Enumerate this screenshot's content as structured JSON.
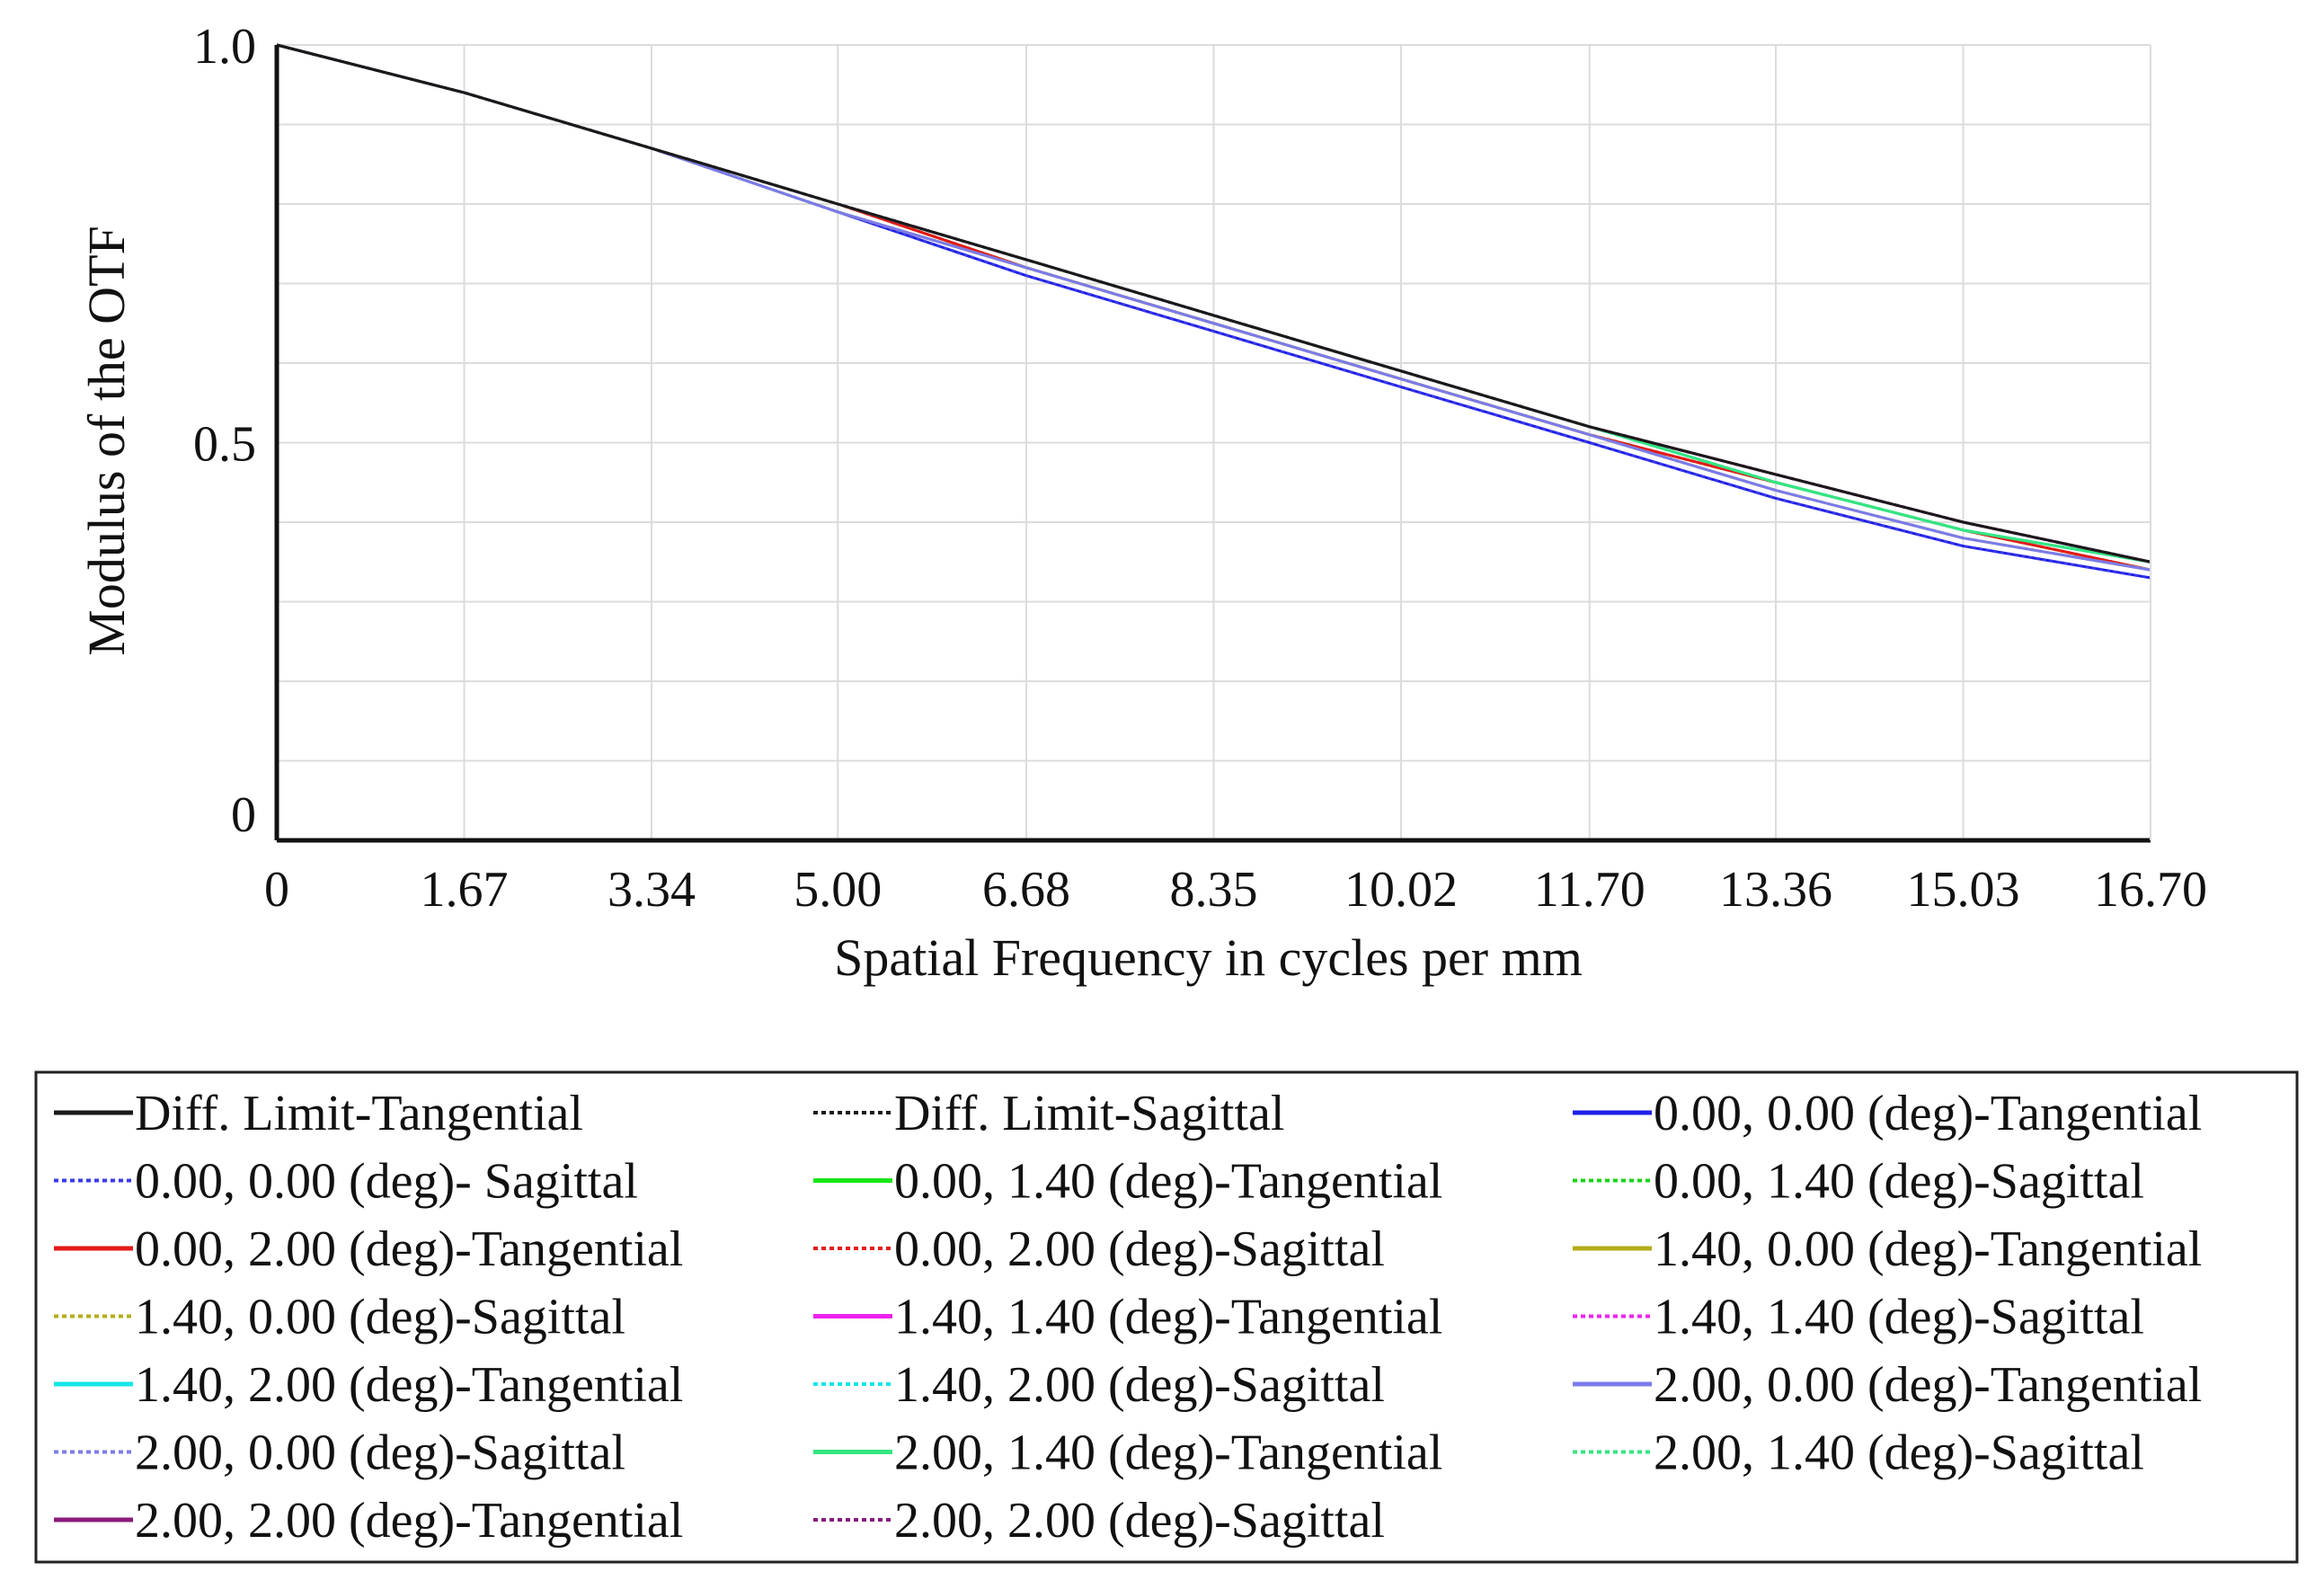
{
  "chart_data": {
    "type": "line",
    "title": "",
    "xlabel": "Spatial Frequency in cycles per mm",
    "ylabel": "Modulus of the OTF",
    "xlim": [
      0,
      16.7
    ],
    "ylim": [
      0,
      1.0
    ],
    "grid": true,
    "legend_placement": "bottom",
    "x_ticks": [
      "0",
      "1.67",
      "3.34",
      "5.00",
      "6.68",
      "8.35",
      "10.02",
      "11.70",
      "13.36",
      "15.03",
      "16.70"
    ],
    "y_ticks": [
      "0",
      "0.5",
      "1.0"
    ],
    "y_gridlines": [
      0.1,
      0.2,
      0.3,
      0.4,
      0.5,
      0.6,
      0.7,
      0.8,
      0.9,
      1.0
    ],
    "x": [
      0,
      1.67,
      3.34,
      5.0,
      6.68,
      8.35,
      10.02,
      11.7,
      13.36,
      15.03,
      16.7
    ],
    "series": [
      {
        "name": "Diff. Limit-Tangential",
        "color": "#1a1a1a",
        "style": "solid",
        "values": [
          1.0,
          0.94,
          0.87,
          0.8,
          0.73,
          0.66,
          0.59,
          0.52,
          0.46,
          0.4,
          0.35
        ]
      },
      {
        "name": "Diff. Limit-Sagittal",
        "color": "#1a1a1a",
        "style": "dotted",
        "values": [
          1.0,
          0.94,
          0.87,
          0.8,
          0.73,
          0.66,
          0.59,
          0.52,
          0.46,
          0.4,
          0.35
        ]
      },
      {
        "name": "0.00, 0.00 (deg)-Tangential",
        "color": "#1f1fe6",
        "style": "solid",
        "values": [
          1.0,
          0.94,
          0.87,
          0.79,
          0.71,
          0.64,
          0.57,
          0.5,
          0.43,
          0.37,
          0.33
        ]
      },
      {
        "name": "0.00, 0.00 (deg)- Sagittal",
        "color": "#3a3ae8",
        "style": "dotted",
        "values": [
          1.0,
          0.94,
          0.87,
          0.79,
          0.71,
          0.64,
          0.57,
          0.5,
          0.43,
          0.37,
          0.33
        ]
      },
      {
        "name": "0.00, 1.40 (deg)-Tangential",
        "color": "#19e619",
        "style": "solid",
        "values": [
          1.0,
          0.94,
          0.87,
          0.8,
          0.72,
          0.65,
          0.58,
          0.51,
          0.45,
          0.39,
          0.34
        ]
      },
      {
        "name": "0.00, 1.40 (deg)-Sagittal",
        "color": "#19d419",
        "style": "dotted",
        "values": [
          1.0,
          0.94,
          0.87,
          0.8,
          0.72,
          0.65,
          0.58,
          0.51,
          0.45,
          0.39,
          0.34
        ]
      },
      {
        "name": "0.00, 2.00 (deg)-Tangential",
        "color": "#e61919",
        "style": "solid",
        "values": [
          1.0,
          0.94,
          0.87,
          0.8,
          0.72,
          0.65,
          0.58,
          0.51,
          0.45,
          0.39,
          0.34
        ]
      },
      {
        "name": "0.00, 2.00 (deg)-Sagittal",
        "color": "#e61919",
        "style": "dotted",
        "values": [
          1.0,
          0.94,
          0.87,
          0.8,
          0.72,
          0.65,
          0.58,
          0.51,
          0.45,
          0.39,
          0.34
        ]
      },
      {
        "name": "1.40, 0.00 (deg)-Tangential",
        "color": "#b3ad1a",
        "style": "solid",
        "values": [
          1.0,
          0.94,
          0.87,
          0.79,
          0.72,
          0.65,
          0.58,
          0.51,
          0.44,
          0.38,
          0.34
        ]
      },
      {
        "name": "1.40, 0.00 (deg)-Sagittal",
        "color": "#b3ad1a",
        "style": "dotted",
        "values": [
          1.0,
          0.94,
          0.87,
          0.79,
          0.72,
          0.65,
          0.58,
          0.51,
          0.44,
          0.38,
          0.34
        ]
      },
      {
        "name": "1.40, 1.40 (deg)-Tangential",
        "color": "#ee22ee",
        "style": "solid",
        "values": [
          1.0,
          0.94,
          0.87,
          0.8,
          0.73,
          0.66,
          0.59,
          0.52,
          0.46,
          0.4,
          0.35
        ]
      },
      {
        "name": "1.40, 1.40 (deg)-Sagittal",
        "color": "#ee22ee",
        "style": "dotted",
        "values": [
          1.0,
          0.94,
          0.87,
          0.8,
          0.73,
          0.66,
          0.59,
          0.52,
          0.46,
          0.4,
          0.35
        ]
      },
      {
        "name": "1.40, 2.00 (deg)-Tangential",
        "color": "#11e6e6",
        "style": "solid",
        "values": [
          1.0,
          0.94,
          0.87,
          0.8,
          0.73,
          0.66,
          0.59,
          0.52,
          0.45,
          0.39,
          0.35
        ]
      },
      {
        "name": "1.40, 2.00 (deg)-Sagittal",
        "color": "#11e6e6",
        "style": "dotted",
        "values": [
          1.0,
          0.94,
          0.87,
          0.8,
          0.73,
          0.66,
          0.59,
          0.52,
          0.45,
          0.39,
          0.35
        ]
      },
      {
        "name": "2.00, 0.00 (deg)-Tangential",
        "color": "#7b7bea",
        "style": "solid",
        "values": [
          1.0,
          0.94,
          0.87,
          0.79,
          0.72,
          0.65,
          0.58,
          0.51,
          0.44,
          0.38,
          0.34
        ]
      },
      {
        "name": "2.00, 0.00 (deg)-Sagittal",
        "color": "#7b7bea",
        "style": "dotted",
        "values": [
          1.0,
          0.94,
          0.87,
          0.79,
          0.72,
          0.65,
          0.58,
          0.51,
          0.44,
          0.38,
          0.34
        ]
      },
      {
        "name": "2.00, 1.40 (deg)-Tangential",
        "color": "#33e680",
        "style": "solid",
        "values": [
          1.0,
          0.94,
          0.87,
          0.8,
          0.73,
          0.66,
          0.59,
          0.52,
          0.45,
          0.39,
          0.35
        ]
      },
      {
        "name": "2.00, 1.40 (deg)-Sagittal",
        "color": "#33e680",
        "style": "dotted",
        "values": [
          1.0,
          0.94,
          0.87,
          0.8,
          0.73,
          0.66,
          0.59,
          0.52,
          0.45,
          0.39,
          0.35
        ]
      },
      {
        "name": "2.00, 2.00 (deg)-Tangential",
        "color": "#8a1a7a",
        "style": "solid",
        "values": [
          1.0,
          0.94,
          0.87,
          0.8,
          0.73,
          0.66,
          0.59,
          0.52,
          0.46,
          0.4,
          0.35
        ]
      },
      {
        "name": "2.00, 2.00 (deg)-Sagittal",
        "color": "#8a1a7a",
        "style": "dotted",
        "values": [
          1.0,
          0.94,
          0.87,
          0.8,
          0.73,
          0.66,
          0.59,
          0.52,
          0.46,
          0.4,
          0.35
        ]
      }
    ]
  }
}
